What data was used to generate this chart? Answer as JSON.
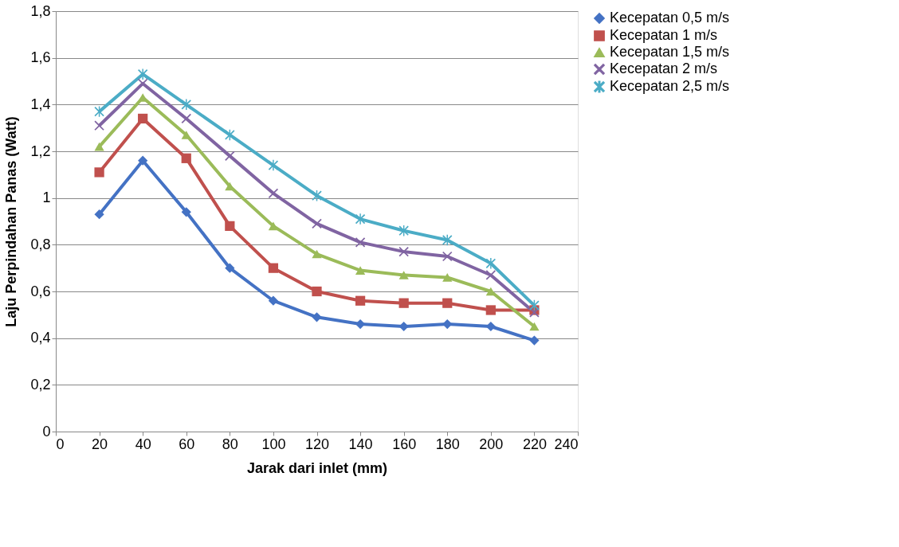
{
  "chart_data": {
    "type": "line",
    "xlabel": "Jarak dari inlet  (mm)",
    "ylabel": "Laju Perpindahan Panas (Watt)",
    "x": [
      20,
      40,
      60,
      80,
      100,
      120,
      140,
      160,
      180,
      200,
      220
    ],
    "series": [
      {
        "name": "Kecepatan 0,5 m/s",
        "color": "#4472c4",
        "marker": "diamond",
        "values": [
          0.93,
          1.16,
          0.94,
          0.7,
          0.56,
          0.49,
          0.46,
          0.45,
          0.46,
          0.45,
          0.39
        ]
      },
      {
        "name": "Kecepatan 1 m/s",
        "color": "#c0504d",
        "marker": "square",
        "values": [
          1.11,
          1.34,
          1.17,
          0.88,
          0.7,
          0.6,
          0.56,
          0.55,
          0.55,
          0.52,
          0.52
        ]
      },
      {
        "name": "Kecepatan 1,5 m/s",
        "color": "#9bbb59",
        "marker": "triangle",
        "values": [
          1.22,
          1.43,
          1.27,
          1.05,
          0.88,
          0.76,
          0.69,
          0.67,
          0.66,
          0.6,
          0.45
        ]
      },
      {
        "name": "Kecepatan 2 m/s",
        "color": "#8064a2",
        "marker": "cross",
        "values": [
          1.31,
          1.49,
          1.34,
          1.18,
          1.02,
          0.89,
          0.81,
          0.77,
          0.75,
          0.67,
          0.51
        ]
      },
      {
        "name": "Kecepatan 2,5 m/s",
        "color": "#4bacc6",
        "marker": "star",
        "values": [
          1.37,
          1.53,
          1.4,
          1.27,
          1.14,
          1.01,
          0.91,
          0.86,
          0.82,
          0.72,
          0.54
        ]
      }
    ],
    "xlim": [
      0,
      240
    ],
    "xticks": [
      0,
      20,
      40,
      60,
      80,
      100,
      120,
      140,
      160,
      180,
      200,
      220,
      240
    ],
    "ylim": [
      0,
      1.8
    ],
    "yticks": [
      0,
      {
        "value": 0.2,
        "label": "0,2"
      },
      {
        "value": 0.4,
        "label": "0,4"
      },
      {
        "value": 0.6,
        "label": "0,6"
      },
      {
        "value": 0.8,
        "label": "0,8"
      },
      1,
      {
        "value": 1.2,
        "label": "1,2"
      },
      {
        "value": 1.4,
        "label": "1,4"
      },
      {
        "value": 1.6,
        "label": "1,6"
      },
      {
        "value": 1.8,
        "label": "1,8"
      }
    ],
    "grid": "y",
    "legend": "right",
    "line_style": "solid"
  }
}
